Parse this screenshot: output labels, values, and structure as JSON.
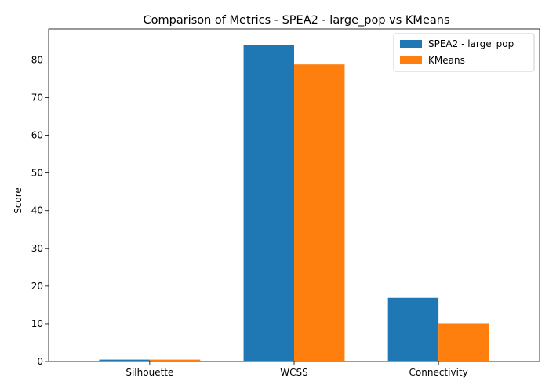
{
  "chart_data": {
    "type": "bar",
    "title": "Comparison of Metrics - SPEA2 - large_pop vs KMeans",
    "xlabel": "",
    "ylabel": "Score",
    "categories": [
      "Silhouette",
      "WCSS",
      "Connectivity"
    ],
    "series": [
      {
        "name": "SPEA2 - large_pop",
        "color": "#1f77b4",
        "values": [
          0.5,
          84.0,
          16.9
        ]
      },
      {
        "name": "KMeans",
        "color": "#ff7f0e",
        "values": [
          0.5,
          78.8,
          10.1
        ]
      }
    ],
    "ylim": [
      0,
      88.2
    ],
    "yticks": [
      0,
      10,
      20,
      30,
      40,
      50,
      60,
      70,
      80
    ],
    "grid": false,
    "legend_position": "top-right"
  }
}
